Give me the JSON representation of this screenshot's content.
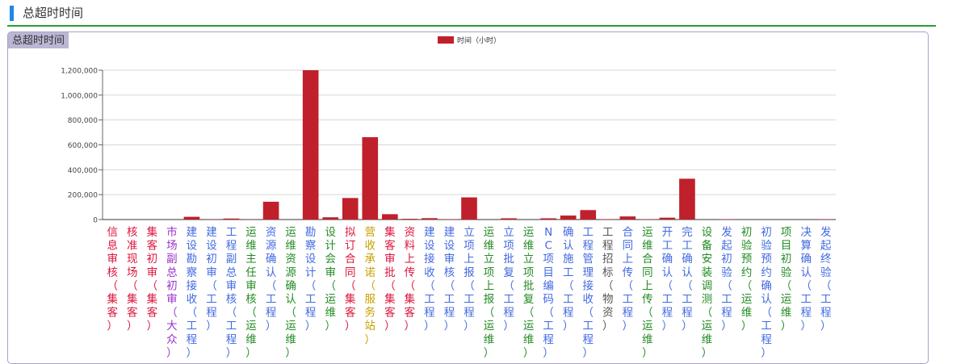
{
  "header": {
    "title": "总超时时间"
  },
  "panel": {
    "title": "总超时时间"
  },
  "colors": {
    "accent": "#1e88e5",
    "header_line": "#2e9b3a",
    "panel_border": "#a9a0c9",
    "panel_title_bg": "#bab6d4",
    "bar": "#c0202b"
  },
  "chart_data": {
    "type": "bar",
    "title": "",
    "xlabel": "",
    "ylabel": "",
    "ylim": [
      0,
      1200000
    ],
    "yticks": [
      "0",
      "200,000",
      "400,000",
      "600,000",
      "800,000",
      "1,000,000",
      "1,200,000"
    ],
    "grid": true,
    "legend_position": "top-center",
    "categories": [
      "信息审核（集客）",
      "核准现场（集客）",
      "集客初审（集客）",
      "市场副总初审（大众）",
      "建设勘察接收（工程）",
      "建设初审（工程）",
      "工程副总审核（工程）",
      "运维主任审核（运维）",
      "资源确认（工程）",
      "运维资源确认（运维）",
      "勘察设计（工程）",
      "设计会审（运维）",
      "拟订合同（集客）",
      "营收承诺（服务站）",
      "集客审批（集客）",
      "资料上传（集客）",
      "建设接收（工程）",
      "建设审核（工程）",
      "立项上报（工程）",
      "运维立项上报（运维）",
      "立项批复（工程）",
      "运维立项批复（运维）",
      "NC项目编码（工程）",
      "确认施工（工程）",
      "工程管理接收（工程）",
      "工程招标（物资）",
      "合同上传（工程）",
      "运维合同上传（运维）",
      "开工确认（工程）",
      "完工确认（工程）",
      "设备安装调测（运维）",
      "发起初验（工程）",
      "初验预约（运维）",
      "初验预约确认（工程）",
      "项目初验（运维）",
      "决算确认（工程）",
      "发起终验（工程）"
    ],
    "category_colors": [
      "#dc143c",
      "#dc143c",
      "#dc143c",
      "#9932cc",
      "#4169e1",
      "#4169e1",
      "#4169e1",
      "#228b22",
      "#4169e1",
      "#228b22",
      "#4169e1",
      "#228b22",
      "#dc143c",
      "#c8a000",
      "#dc143c",
      "#dc143c",
      "#4169e1",
      "#4169e1",
      "#4169e1",
      "#228b22",
      "#4169e1",
      "#228b22",
      "#4169e1",
      "#4169e1",
      "#4169e1",
      "#555555",
      "#4169e1",
      "#228b22",
      "#4169e1",
      "#4169e1",
      "#228b22",
      "#4169e1",
      "#228b22",
      "#4169e1",
      "#228b22",
      "#4169e1",
      "#4169e1"
    ],
    "series": [
      {
        "name": "时间（小时）",
        "values": [
          0,
          0,
          0,
          0,
          22000,
          2000,
          8000,
          2000,
          143000,
          0,
          1200000,
          18000,
          173000,
          662000,
          43000,
          6000,
          11000,
          3000,
          178000,
          0,
          10000,
          0,
          10000,
          32000,
          76000,
          3000,
          25000,
          3000,
          15000,
          328000,
          0,
          3000,
          0,
          0,
          0,
          0,
          3000
        ]
      }
    ]
  }
}
